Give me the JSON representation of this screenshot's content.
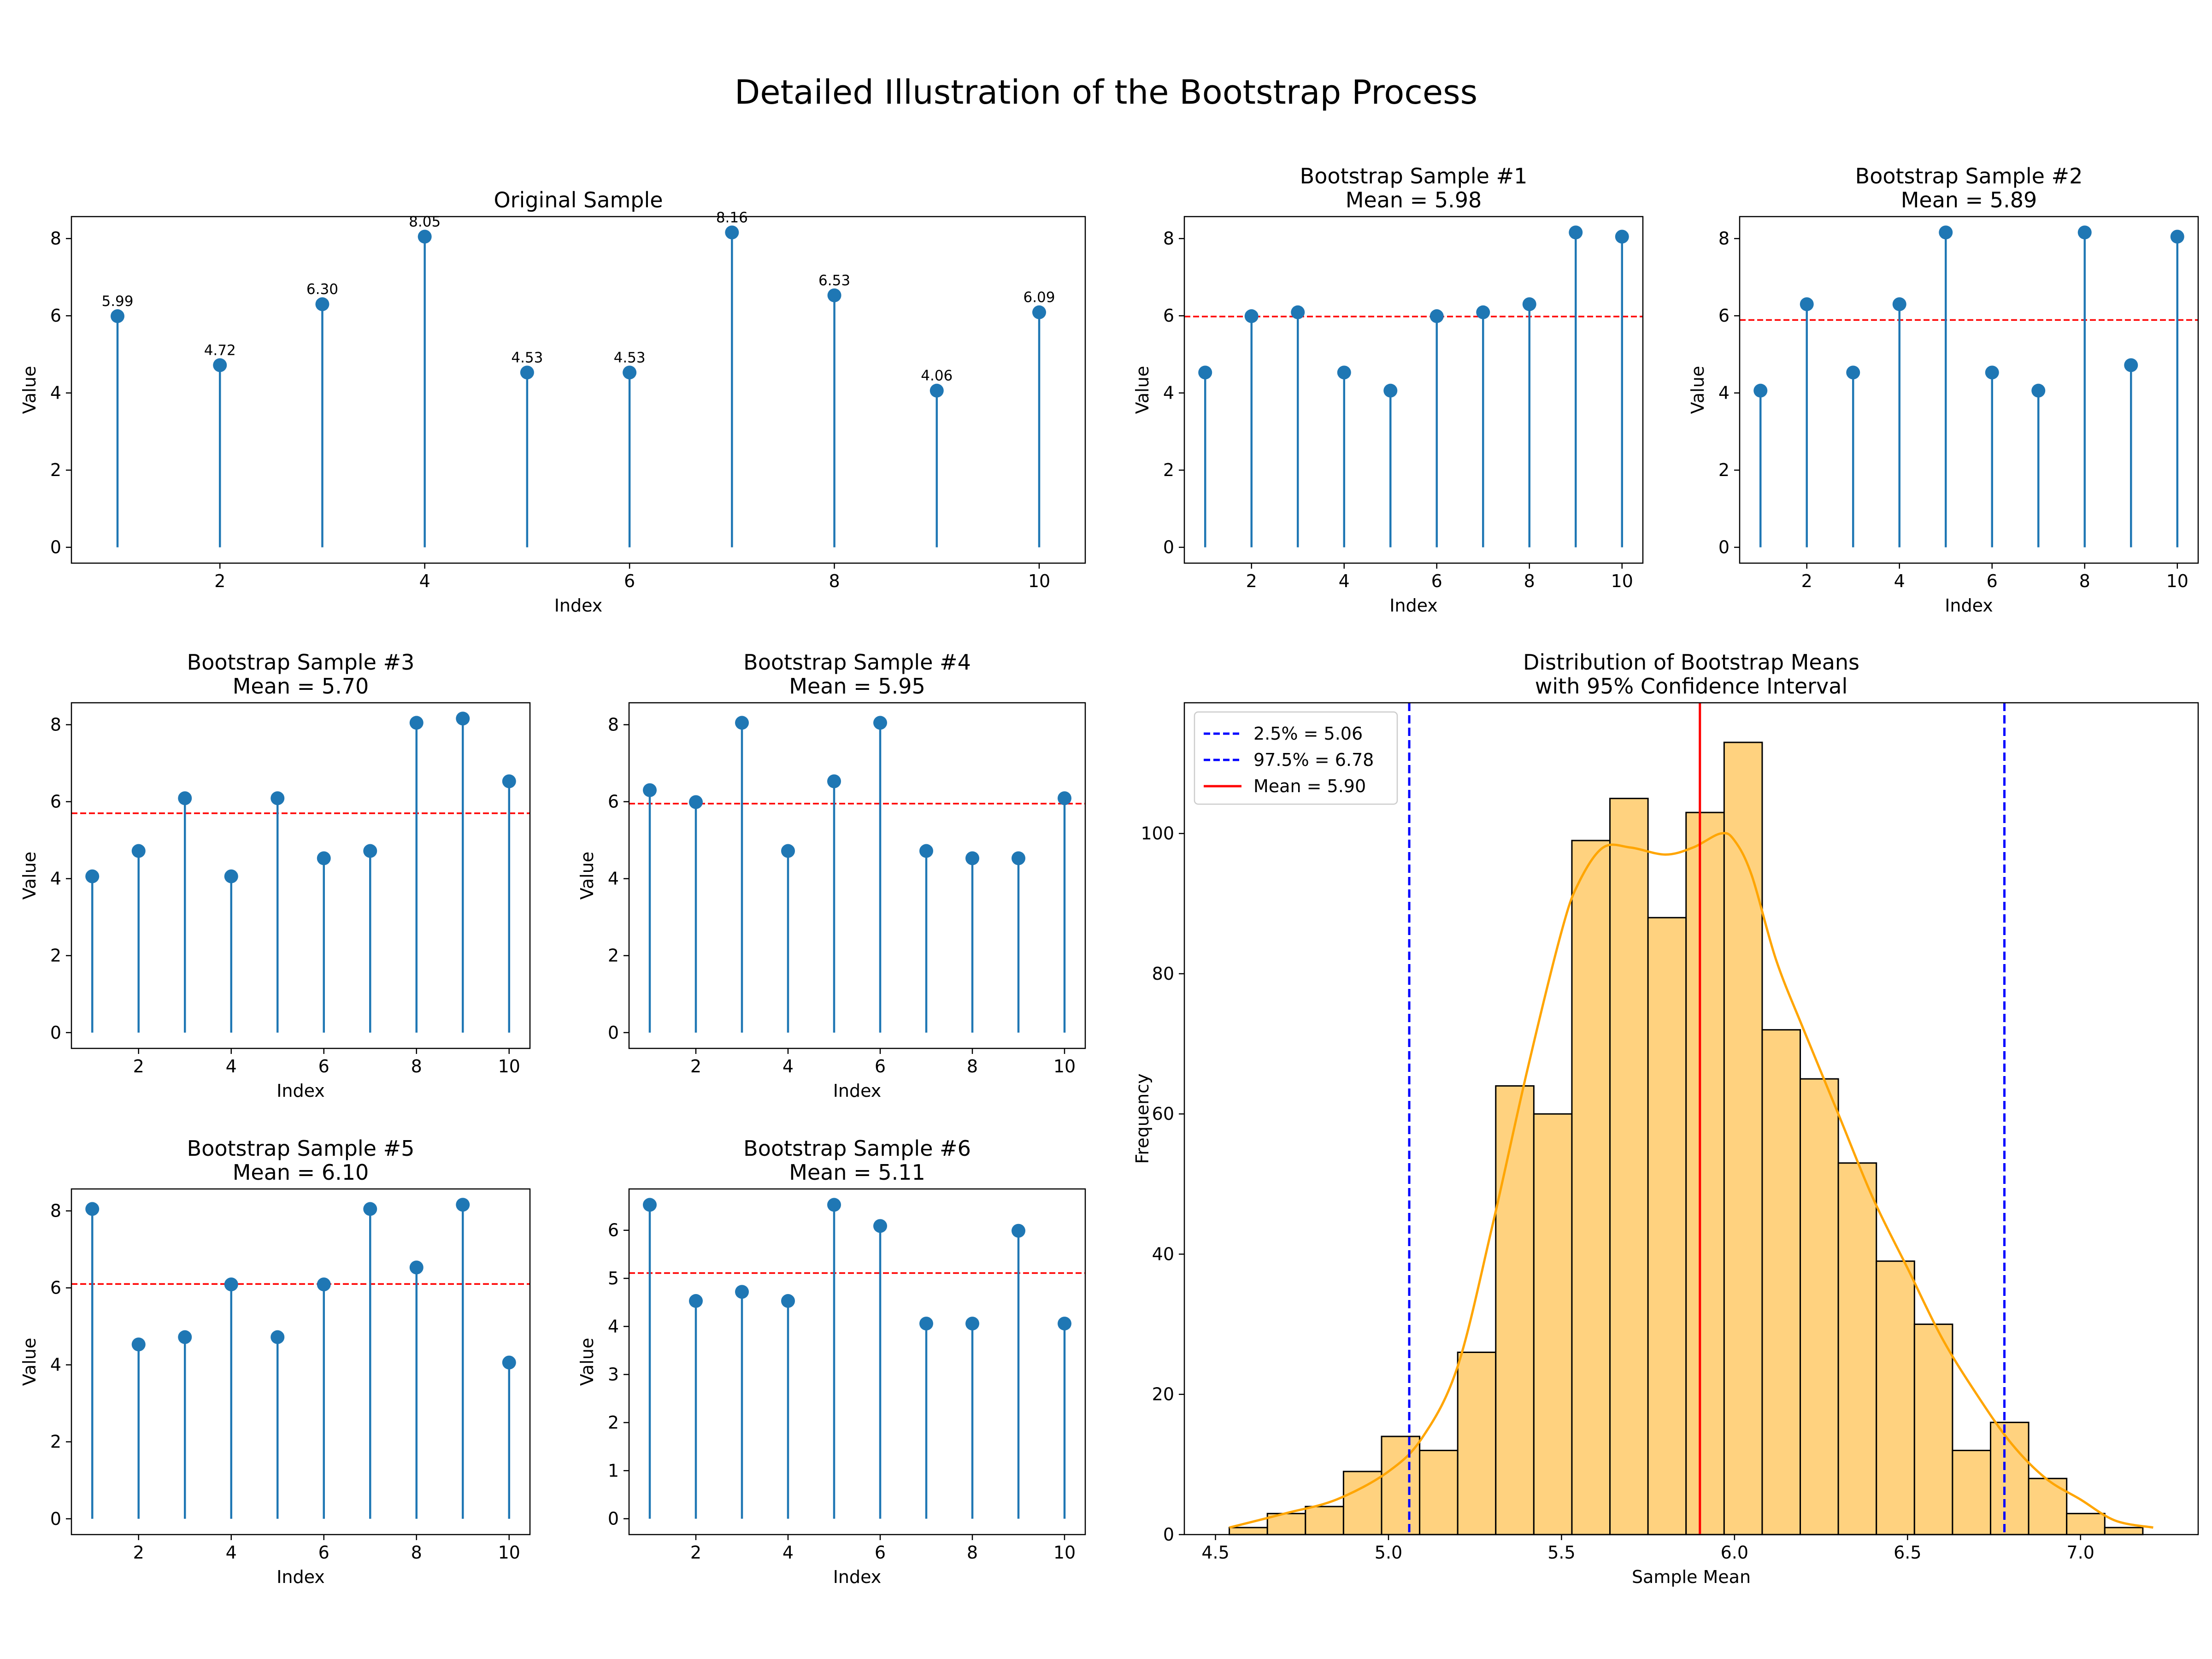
{
  "figure": {
    "title": "Detailed Illustration of the Bootstrap Process"
  },
  "colors": {
    "stem": "#1f77b4",
    "mean_line": "#ff0000",
    "hist_fill": "#ffd27f",
    "hist_edge": "#000000",
    "kde": "#ffa500",
    "ci_line": "#0000ff",
    "hist_mean_line": "#ff0000"
  },
  "chart_data": [
    {
      "id": "original",
      "type": "stem",
      "title": "Original Sample",
      "xlabel": "Index",
      "ylabel": "Value",
      "x": [
        1,
        2,
        3,
        4,
        5,
        6,
        7,
        8,
        9,
        10
      ],
      "values": [
        5.99,
        4.72,
        6.3,
        8.05,
        4.53,
        4.53,
        8.16,
        6.53,
        4.06,
        6.09
      ],
      "data_labels": [
        "5.99",
        "4.72",
        "6.30",
        "8.05",
        "4.53",
        "4.53",
        "8.16",
        "6.53",
        "4.06",
        "6.09"
      ],
      "xlim": [
        0.55,
        10.45
      ],
      "ylim": [
        -0.41,
        8.57
      ],
      "xticks": [
        2,
        4,
        6,
        8,
        10
      ],
      "yticks": [
        0,
        2,
        4,
        6,
        8
      ]
    },
    {
      "id": "bs1",
      "type": "stem",
      "title": "Bootstrap Sample #1",
      "subtitle": "Mean = 5.98",
      "xlabel": "Index",
      "ylabel": "Value",
      "x": [
        1,
        2,
        3,
        4,
        5,
        6,
        7,
        8,
        9,
        10
      ],
      "values": [
        4.53,
        5.99,
        6.09,
        4.53,
        4.06,
        5.99,
        6.09,
        6.3,
        8.16,
        8.05
      ],
      "mean": 5.98,
      "xlim": [
        0.55,
        10.45
      ],
      "ylim": [
        -0.41,
        8.57
      ],
      "xticks": [
        2,
        4,
        6,
        8,
        10
      ],
      "yticks": [
        0,
        2,
        4,
        6,
        8
      ]
    },
    {
      "id": "bs2",
      "type": "stem",
      "title": "Bootstrap Sample #2",
      "subtitle": "Mean = 5.89",
      "xlabel": "Index",
      "ylabel": "Value",
      "x": [
        1,
        2,
        3,
        4,
        5,
        6,
        7,
        8,
        9,
        10
      ],
      "values": [
        4.06,
        6.3,
        4.53,
        6.3,
        8.16,
        4.53,
        4.06,
        8.16,
        4.72,
        8.05
      ],
      "mean": 5.89,
      "xlim": [
        0.55,
        10.45
      ],
      "ylim": [
        -0.41,
        8.57
      ],
      "xticks": [
        2,
        4,
        6,
        8,
        10
      ],
      "yticks": [
        0,
        2,
        4,
        6,
        8
      ]
    },
    {
      "id": "bs3",
      "type": "stem",
      "title": "Bootstrap Sample #3",
      "subtitle": "Mean = 5.70",
      "xlabel": "Index",
      "ylabel": "Value",
      "x": [
        1,
        2,
        3,
        4,
        5,
        6,
        7,
        8,
        9,
        10
      ],
      "values": [
        4.06,
        4.72,
        6.09,
        4.06,
        6.09,
        4.53,
        4.72,
        8.05,
        8.16,
        6.53
      ],
      "mean": 5.7,
      "xlim": [
        0.55,
        10.45
      ],
      "ylim": [
        -0.41,
        8.57
      ],
      "xticks": [
        2,
        4,
        6,
        8,
        10
      ],
      "yticks": [
        0,
        2,
        4,
        6,
        8
      ]
    },
    {
      "id": "bs4",
      "type": "stem",
      "title": "Bootstrap Sample #4",
      "subtitle": "Mean = 5.95",
      "xlabel": "Index",
      "ylabel": "Value",
      "x": [
        1,
        2,
        3,
        4,
        5,
        6,
        7,
        8,
        9,
        10
      ],
      "values": [
        6.3,
        5.99,
        8.05,
        4.72,
        6.53,
        8.05,
        4.72,
        4.53,
        4.53,
        6.09
      ],
      "mean": 5.95,
      "xlim": [
        0.55,
        10.45
      ],
      "ylim": [
        -0.41,
        8.57
      ],
      "xticks": [
        2,
        4,
        6,
        8,
        10
      ],
      "yticks": [
        0,
        2,
        4,
        6,
        8
      ]
    },
    {
      "id": "bs5",
      "type": "stem",
      "title": "Bootstrap Sample #5",
      "subtitle": "Mean = 6.10",
      "xlabel": "Index",
      "ylabel": "Value",
      "x": [
        1,
        2,
        3,
        4,
        5,
        6,
        7,
        8,
        9,
        10
      ],
      "values": [
        8.05,
        4.53,
        4.72,
        6.09,
        4.72,
        6.09,
        8.05,
        6.53,
        8.16,
        4.06
      ],
      "mean": 6.1,
      "xlim": [
        0.55,
        10.45
      ],
      "ylim": [
        -0.41,
        8.57
      ],
      "xticks": [
        2,
        4,
        6,
        8,
        10
      ],
      "yticks": [
        0,
        2,
        4,
        6,
        8
      ]
    },
    {
      "id": "bs6",
      "type": "stem",
      "title": "Bootstrap Sample #6",
      "subtitle": "Mean = 5.11",
      "xlabel": "Index",
      "ylabel": "Value",
      "x": [
        1,
        2,
        3,
        4,
        5,
        6,
        7,
        8,
        9,
        10
      ],
      "values": [
        6.53,
        4.53,
        4.72,
        4.53,
        6.53,
        6.09,
        4.06,
        4.06,
        5.99,
        4.06
      ],
      "mean": 5.11,
      "xlim": [
        0.55,
        10.45
      ],
      "ylim": [
        -0.33,
        6.86
      ],
      "xticks": [
        2,
        4,
        6,
        8,
        10
      ],
      "yticks": [
        0,
        1,
        2,
        3,
        4,
        5,
        6
      ]
    },
    {
      "id": "hist",
      "type": "histogram",
      "title": "Distribution of Bootstrap Means",
      "subtitle": "with 95% Confidence Interval",
      "xlabel": "Sample Mean",
      "ylabel": "Frequency",
      "bin_edges": [
        4.54,
        4.65,
        4.76,
        4.87,
        4.98,
        5.09,
        5.2,
        5.31,
        5.42,
        5.53,
        5.64,
        5.75,
        5.86,
        5.97,
        6.08,
        6.19,
        6.3,
        6.41,
        6.52,
        6.63,
        6.74,
        6.85,
        6.96,
        7.07,
        7.18
      ],
      "counts": [
        1,
        3,
        4,
        9,
        14,
        12,
        26,
        64,
        60,
        99,
        105,
        88,
        103,
        113,
        72,
        65,
        53,
        39,
        30,
        12,
        16,
        8,
        3,
        1
      ],
      "kde_x": [
        4.54,
        4.7,
        4.85,
        5.0,
        5.1,
        5.2,
        5.3,
        5.4,
        5.5,
        5.55,
        5.62,
        5.7,
        5.8,
        5.88,
        5.96,
        6.0,
        6.05,
        6.12,
        6.2,
        6.3,
        6.4,
        6.5,
        6.6,
        6.7,
        6.8,
        6.9,
        7.0,
        7.1,
        7.21
      ],
      "kde_y": [
        1,
        3,
        5,
        9,
        14,
        24,
        44,
        66,
        86,
        93,
        98,
        98,
        97,
        98,
        100,
        99,
        94,
        82,
        72,
        60,
        48,
        38,
        28,
        20,
        13,
        8,
        5,
        2,
        1
      ],
      "ci_lower": 5.06,
      "ci_upper": 6.78,
      "mean": 5.9,
      "legend": [
        "2.5% = 5.06",
        "97.5% = 6.78",
        "Mean = 5.90"
      ],
      "legend_position": "upper-left",
      "xlim": [
        4.41,
        7.34
      ],
      "ylim": [
        0,
        118.65
      ],
      "xticks": [
        4.5,
        5.0,
        5.5,
        6.0,
        6.5,
        7.0
      ],
      "xtick_labels": [
        "4.5",
        "5.0",
        "5.5",
        "6.0",
        "6.5",
        "7.0"
      ],
      "yticks": [
        0,
        20,
        40,
        60,
        80,
        100
      ]
    }
  ]
}
